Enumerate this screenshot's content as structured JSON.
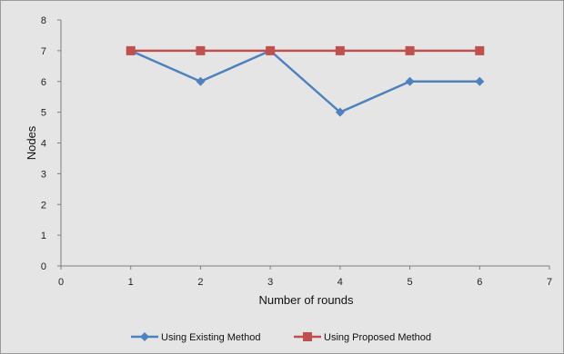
{
  "chart_data": {
    "type": "line",
    "title": "",
    "xlabel": "Number of rounds",
    "ylabel": "Nodes",
    "xlim": [
      0,
      7
    ],
    "ylim": [
      0,
      8
    ],
    "x_ticks": [
      0,
      1,
      2,
      3,
      4,
      5,
      6,
      7
    ],
    "y_ticks": [
      0,
      1,
      2,
      3,
      4,
      5,
      6,
      7,
      8
    ],
    "grid": false,
    "legend_position": "bottom",
    "x": [
      1,
      2,
      3,
      4,
      5,
      6
    ],
    "series": [
      {
        "name": "Using Existing Method",
        "values": [
          7,
          6,
          7,
          5,
          6,
          6
        ],
        "color": "#4f81bd",
        "marker": "diamond"
      },
      {
        "name": "Using Proposed Method",
        "values": [
          7,
          7,
          7,
          7,
          7,
          7
        ],
        "color": "#c0504d",
        "marker": "square"
      }
    ]
  }
}
